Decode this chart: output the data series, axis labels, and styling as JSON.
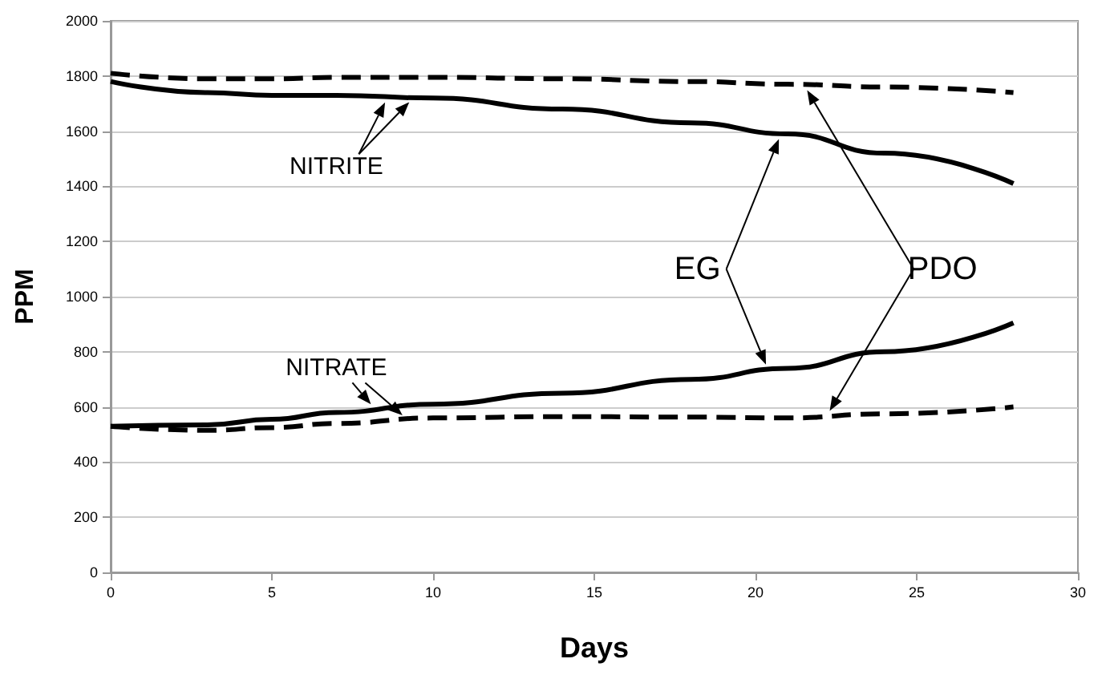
{
  "chart_data": {
    "type": "line",
    "xlabel": "Days",
    "ylabel": "PPM",
    "x": [
      0,
      3,
      5,
      7,
      10,
      14,
      18,
      21,
      24,
      28
    ],
    "series": [
      {
        "color": "#000000",
        "line_style": "solid",
        "values": [
          1780,
          1740,
          1730,
          1730,
          1720,
          1680,
          1630,
          1590,
          1520,
          1410
        ]
      },
      {
        "color": "#000000",
        "line_style": "dashed",
        "values": [
          1810,
          1790,
          1790,
          1795,
          1795,
          1790,
          1780,
          1770,
          1760,
          1740
        ]
      },
      {
        "color": "#000000",
        "line_style": "solid",
        "values": [
          530,
          535,
          555,
          580,
          610,
          650,
          700,
          740,
          800,
          905
        ]
      },
      {
        "color": "#000000",
        "line_style": "dashed",
        "values": [
          530,
          515,
          525,
          540,
          560,
          565,
          563,
          560,
          575,
          600
        ]
      }
    ],
    "annotations": [
      "NITRITE",
      "NITRATE",
      "EG",
      "PDO"
    ],
    "xlim": [
      0,
      30
    ],
    "xticks": [
      0,
      5,
      10,
      15,
      20,
      25,
      30
    ],
    "ylim": [
      0,
      2000
    ],
    "yticks": [
      0,
      200,
      400,
      600,
      800,
      1000,
      1200,
      1400,
      1600,
      1800,
      2000
    ],
    "grid": "y",
    "marker": "none"
  }
}
